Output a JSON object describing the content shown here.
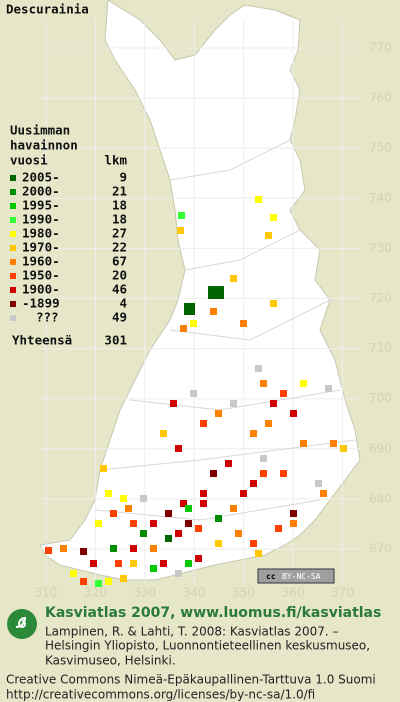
{
  "title": "Descurainia",
  "map_grid": {
    "northing": [
      770,
      760,
      750,
      740,
      730,
      720,
      710,
      700,
      690,
      680,
      670
    ],
    "easting": [
      310,
      320,
      330,
      340,
      350,
      360,
      370
    ]
  },
  "legend": {
    "heading": [
      "Uusimman",
      "havainnon",
      "vuosi"
    ],
    "count_heading": "lkm",
    "rows": [
      {
        "label": "2005-",
        "count": 9,
        "color": "#006400"
      },
      {
        "label": "2000-",
        "count": 21,
        "color": "#008c00"
      },
      {
        "label": "1995-",
        "count": 18,
        "color": "#00c800"
      },
      {
        "label": "1990-",
        "count": 18,
        "color": "#33ff33"
      },
      {
        "label": "1980-",
        "count": 27,
        "color": "#ffff00"
      },
      {
        "label": "1970-",
        "count": 22,
        "color": "#ffc800"
      },
      {
        "label": "1960-",
        "count": 67,
        "color": "#ff8000"
      },
      {
        "label": "1950-",
        "count": 20,
        "color": "#ff4000"
      },
      {
        "label": "1900-",
        "count": 46,
        "color": "#d00000"
      },
      {
        "label": "-1899",
        "count": 4,
        "color": "#800000"
      },
      {
        "label": "???",
        "count": 49,
        "color": "#c8c8c8"
      }
    ],
    "total_label": "Yhteensä",
    "total": 301
  },
  "badge": {
    "cc": "cc",
    "terms": "BY-NC-SA"
  },
  "footer": {
    "brand": "Kasviatlas 2007, www.luomus.fi/kasviatlas",
    "citation": [
      "Lampinen, R. & Lahti, T. 2008: Kasviatlas 2007. –",
      "Helsingin Yliopisto, Luonnontieteellinen keskusmuseo,",
      "Kasvimuseo, Helsinki."
    ],
    "license": [
      "Creative Commons Nimeä-Epäkaupallinen-Tarttuva 1.0 Suomi",
      "http://creativecommons.org/licenses/by-nc-sa/1.0/fi"
    ]
  }
}
